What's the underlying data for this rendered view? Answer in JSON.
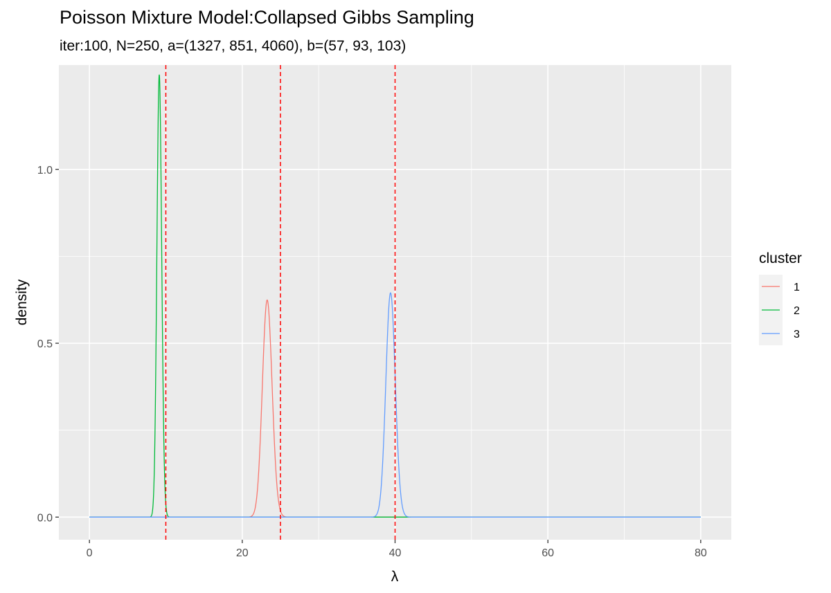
{
  "chart_data": {
    "type": "line",
    "title": "Poisson Mixture Model:Collapsed Gibbs Sampling",
    "subtitle": "iter:100, N=250, a=(1327, 851, 4060), b=(57, 93, 103)",
    "xlabel": "λ",
    "ylabel": "density",
    "xlim": [
      -4,
      84
    ],
    "ylim": [
      -0.065,
      1.3
    ],
    "x_ticks": [
      0,
      20,
      40,
      60,
      80
    ],
    "x_tick_labels": [
      "0",
      "20",
      "40",
      "60",
      "80"
    ],
    "y_ticks": [
      0.0,
      0.5,
      1.0
    ],
    "y_tick_labels": [
      "0.0",
      "0.5",
      "1.0"
    ],
    "grid": true,
    "x_range_drawn": [
      0,
      80
    ],
    "legend": {
      "title": "cluster",
      "position": "right",
      "entries": [
        "1",
        "2",
        "3"
      ]
    },
    "series": [
      {
        "name": "1",
        "color": "#F8766D",
        "distribution": "gamma",
        "shape": 1327,
        "rate": 57
      },
      {
        "name": "2",
        "color": "#00BA38",
        "distribution": "gamma",
        "shape": 851,
        "rate": 93
      },
      {
        "name": "3",
        "color": "#619CFF",
        "distribution": "gamma",
        "shape": 4060,
        "rate": 103
      }
    ],
    "vlines": {
      "values": [
        10,
        25,
        40
      ],
      "color": "#FF0000",
      "linetype": "dashed"
    }
  }
}
